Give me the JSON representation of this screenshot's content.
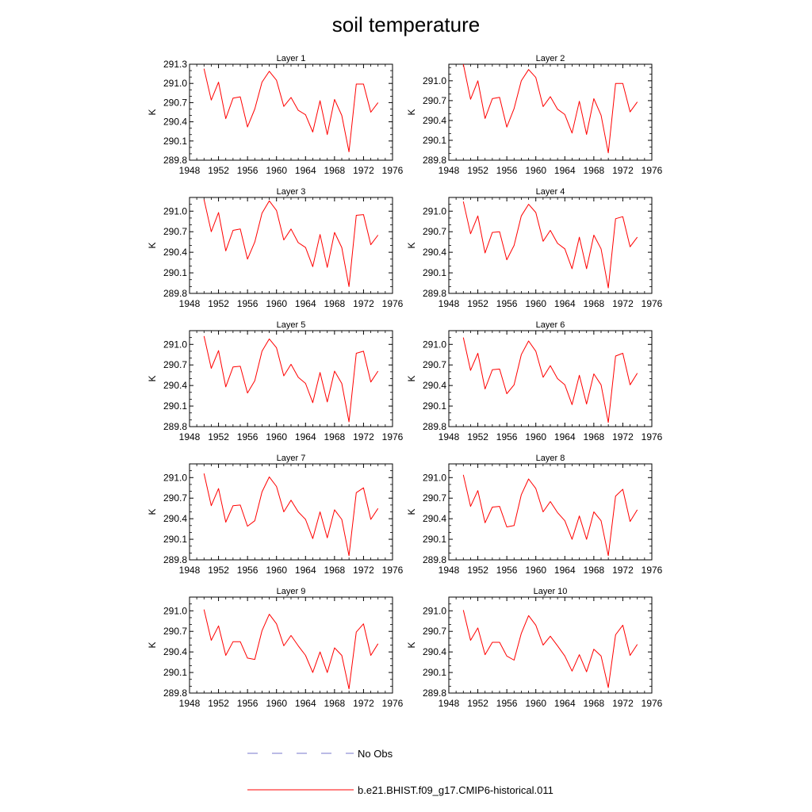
{
  "figure": {
    "title": "soil temperature"
  },
  "chart_data": {
    "type": "line",
    "ylabel": "K",
    "x_ticks": [
      1948,
      1952,
      1956,
      1960,
      1964,
      1968,
      1972,
      1976
    ],
    "xlim": [
      1948,
      1976
    ],
    "x": [
      1950,
      1951,
      1952,
      1953,
      1954,
      1955,
      1956,
      1957,
      1958,
      1959,
      1960,
      1961,
      1962,
      1963,
      1964,
      1965,
      1966,
      1967,
      1968,
      1969,
      1970,
      1971,
      1972,
      1973,
      1974
    ],
    "legend": [
      {
        "label": "No Obs",
        "color": "#7777cc",
        "style": "dashed"
      },
      {
        "label": "b.e21.BHIST.f09_g17.CMIP6-historical.011",
        "color": "#ff0000",
        "style": "solid"
      }
    ],
    "panels": [
      {
        "title": "Layer 1",
        "ylim": [
          289.8,
          291.3
        ],
        "y_ticks": [
          "289.8",
          "290.1",
          "290.4",
          "290.7",
          "291.0",
          "291.3"
        ],
        "series": [
          {
            "values": [
              291.23,
              290.74,
              291.02,
              290.45,
              290.77,
              290.79,
              290.32,
              290.6,
              291.02,
              291.19,
              291.05,
              290.64,
              290.78,
              290.58,
              290.51,
              290.24,
              290.73,
              290.2,
              290.75,
              290.5,
              289.93,
              290.99,
              290.99,
              290.55,
              290.7
            ]
          }
        ]
      },
      {
        "title": "Layer 2",
        "ylim": [
          289.8,
          291.25
        ],
        "y_ticks": [
          "289.8",
          "290.1",
          "290.4",
          "290.7",
          "291.0"
        ],
        "series": [
          {
            "values": [
              291.25,
              290.72,
              291.0,
              290.43,
              290.73,
              290.75,
              290.3,
              290.58,
              291.0,
              291.17,
              291.05,
              290.61,
              290.76,
              290.57,
              290.49,
              290.21,
              290.69,
              290.19,
              290.73,
              290.48,
              289.91,
              290.96,
              290.96,
              290.53,
              290.68
            ]
          }
        ]
      },
      {
        "title": "Layer 3",
        "ylim": [
          289.8,
          291.2
        ],
        "y_ticks": [
          "289.8",
          "290.1",
          "290.4",
          "290.7",
          "291.0"
        ],
        "series": [
          {
            "values": [
              291.17,
              290.7,
              290.98,
              290.42,
              290.72,
              290.74,
              290.3,
              290.55,
              290.97,
              291.15,
              291.01,
              290.58,
              290.74,
              290.54,
              290.47,
              290.19,
              290.66,
              290.18,
              290.69,
              290.47,
              289.9,
              290.94,
              290.95,
              290.51,
              290.65
            ]
          }
        ]
      },
      {
        "title": "Layer 4",
        "ylim": [
          289.8,
          291.2
        ],
        "y_ticks": [
          "289.8",
          "290.1",
          "290.4",
          "290.7",
          "291.0"
        ],
        "series": [
          {
            "values": [
              291.14,
              290.67,
              290.93,
              290.39,
              290.69,
              290.7,
              290.29,
              290.5,
              290.93,
              291.1,
              290.98,
              290.56,
              290.72,
              290.53,
              290.45,
              290.16,
              290.62,
              290.16,
              290.65,
              290.45,
              289.88,
              290.89,
              290.92,
              290.48,
              290.62
            ]
          }
        ]
      },
      {
        "title": "Layer 5",
        "ylim": [
          289.8,
          291.2
        ],
        "y_ticks": [
          "289.8",
          "290.1",
          "290.4",
          "290.7",
          "291.0"
        ],
        "series": [
          {
            "values": [
              291.12,
              290.65,
              290.91,
              290.38,
              290.67,
              290.68,
              290.29,
              290.47,
              290.9,
              291.08,
              290.95,
              290.54,
              290.71,
              290.52,
              290.43,
              290.15,
              290.59,
              290.16,
              290.61,
              290.43,
              289.87,
              290.87,
              290.9,
              290.45,
              290.61
            ]
          }
        ]
      },
      {
        "title": "Layer 6",
        "ylim": [
          289.8,
          291.2
        ],
        "y_ticks": [
          "289.8",
          "290.1",
          "290.4",
          "290.7",
          "291.0"
        ],
        "series": [
          {
            "values": [
              291.1,
              290.62,
              290.87,
              290.35,
              290.63,
              290.64,
              290.28,
              290.41,
              290.85,
              291.05,
              290.9,
              290.52,
              290.69,
              290.5,
              290.41,
              290.12,
              290.55,
              290.13,
              290.57,
              290.41,
              289.86,
              290.83,
              290.87,
              290.41,
              290.58
            ]
          }
        ]
      },
      {
        "title": "Layer 7",
        "ylim": [
          289.8,
          291.2
        ],
        "y_ticks": [
          "289.8",
          "290.1",
          "290.4",
          "290.7",
          "291.0"
        ],
        "series": [
          {
            "values": [
              291.06,
              290.59,
              290.84,
              290.35,
              290.59,
              290.6,
              290.29,
              290.37,
              290.79,
              291.01,
              290.87,
              290.5,
              290.67,
              290.5,
              290.39,
              290.11,
              290.5,
              290.12,
              290.53,
              290.39,
              289.86,
              290.78,
              290.85,
              290.39,
              290.55
            ]
          }
        ]
      },
      {
        "title": "Layer 8",
        "ylim": [
          289.8,
          291.2
        ],
        "y_ticks": [
          "289.8",
          "290.1",
          "290.4",
          "290.7",
          "291.0"
        ],
        "series": [
          {
            "values": [
              291.04,
              290.58,
              290.81,
              290.34,
              290.57,
              290.58,
              290.28,
              290.3,
              290.75,
              290.98,
              290.84,
              290.5,
              290.65,
              290.49,
              290.37,
              290.1,
              290.44,
              290.1,
              290.5,
              290.37,
              289.86,
              290.73,
              290.83,
              290.36,
              290.53
            ]
          }
        ]
      },
      {
        "title": "Layer 9",
        "ylim": [
          289.8,
          291.2
        ],
        "y_ticks": [
          "289.8",
          "290.1",
          "290.4",
          "290.7",
          "291.0"
        ],
        "series": [
          {
            "values": [
              291.02,
              290.57,
              290.78,
              290.35,
              290.55,
              290.55,
              290.31,
              290.29,
              290.71,
              290.95,
              290.81,
              290.49,
              290.64,
              290.49,
              290.35,
              290.1,
              290.4,
              290.1,
              290.46,
              290.35,
              289.86,
              290.69,
              290.81,
              290.35,
              290.52
            ]
          }
        ]
      },
      {
        "title": "Layer 10",
        "ylim": [
          289.8,
          291.2
        ],
        "y_ticks": [
          "289.8",
          "290.1",
          "290.4",
          "290.7",
          "291.0"
        ],
        "series": [
          {
            "values": [
              291.01,
              290.57,
              290.75,
              290.36,
              290.54,
              290.54,
              290.34,
              290.28,
              290.67,
              290.93,
              290.79,
              290.5,
              290.63,
              290.49,
              290.34,
              290.12,
              290.36,
              290.11,
              290.44,
              290.34,
              289.88,
              290.65,
              290.79,
              290.35,
              290.51
            ]
          }
        ]
      }
    ]
  }
}
